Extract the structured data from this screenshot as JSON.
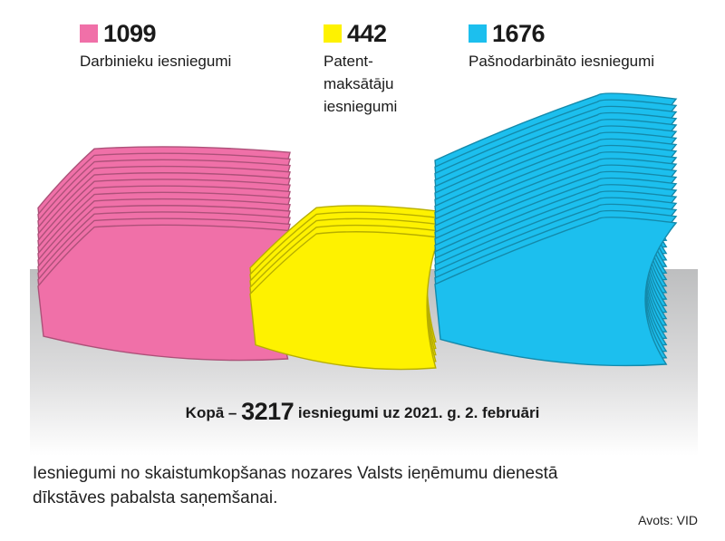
{
  "chart_data": {
    "type": "bar",
    "categories": [
      "Darbinieku iesniegumi",
      "Patent-\nmaksātāju\niesniegumi",
      "Pašnodarbināto iesniegumi"
    ],
    "series": [
      {
        "values": [
          1099,
          442,
          1676
        ]
      }
    ],
    "colors": [
      "#f070a8",
      "#fef200",
      "#1cbfee"
    ],
    "grid": false,
    "legend": "top"
  },
  "legend": [
    {
      "value": "1099",
      "label": "Darbinieku iesniegumi",
      "color": "#f070a8"
    },
    {
      "value": "442",
      "label_lines": [
        "Patent-",
        "maksātāju",
        "iesniegumi"
      ],
      "color": "#fef200"
    },
    {
      "value": "1676",
      "label": "Pašnodarbināto iesniegumi",
      "color": "#1cbfee"
    }
  ],
  "total": {
    "prefix": "Kopā –",
    "value": "3217",
    "suffix": "iesniegumi uz 2021. g. 2. februāri"
  },
  "caption_lines": [
    "Iesniegumi no skaistumkopšanas nozares Valsts ieņēmumu dienestā",
    "dīkstāves pabalsta saņemšanai."
  ],
  "source": "Avots: VID"
}
